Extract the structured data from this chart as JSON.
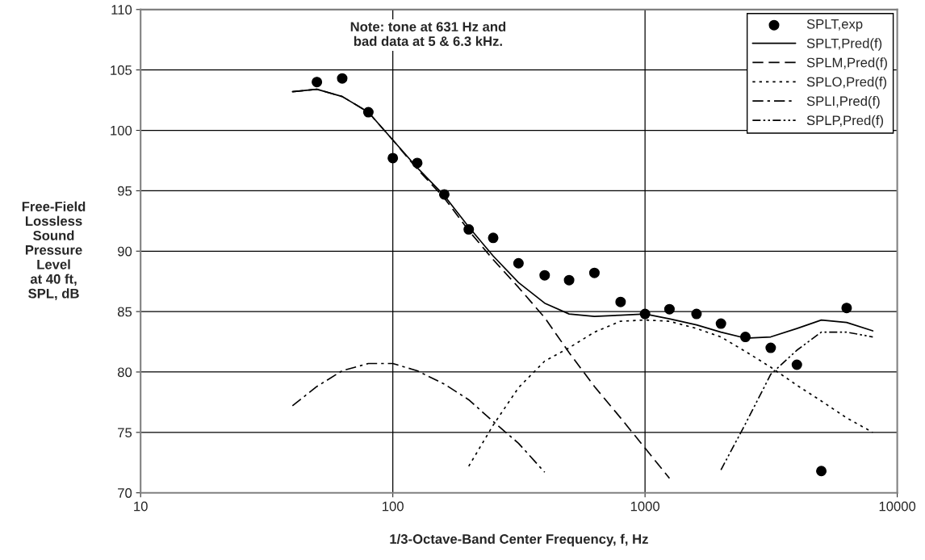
{
  "chart_data": {
    "type": "line",
    "xlabel": "1/3-Octave-Band Center Frequency, f, Hz",
    "ylabel": "Free-Field\nLossless\nSound\nPressure\nLevel\nat 40 ft,\nSPL, dB",
    "annotations": [
      "Note: tone at 631 Hz and\nbad data at 5 & 6.3 kHz."
    ],
    "x": [
      40,
      50,
      63,
      80,
      100,
      125,
      160,
      200,
      250,
      315,
      400,
      500,
      630,
      800,
      1000,
      1250,
      1600,
      2000,
      2500,
      3150,
      4000,
      5000,
      6300,
      8000
    ],
    "series": [
      {
        "name": "SPLT,exp",
        "type": "scatter",
        "marker": "circle",
        "color": "#000000",
        "values": [
          null,
          104.0,
          104.3,
          101.5,
          97.7,
          97.3,
          94.7,
          91.8,
          91.1,
          89.0,
          88.0,
          87.6,
          88.2,
          85.8,
          84.8,
          85.2,
          84.8,
          84.0,
          82.9,
          82.0,
          80.6,
          71.8,
          85.3,
          null
        ]
      },
      {
        "name": "SPLT,Pred(f)",
        "line_style": "solid",
        "color": "#000000",
        "values": [
          103.2,
          103.4,
          102.8,
          101.5,
          99.2,
          96.9,
          94.6,
          92.0,
          89.6,
          87.4,
          85.7,
          84.8,
          84.6,
          84.7,
          84.8,
          84.4,
          83.9,
          83.3,
          82.8,
          82.9,
          83.6,
          84.3,
          84.1,
          83.4
        ]
      },
      {
        "name": "SPLM,Pred(f)",
        "line_style": "dashed",
        "color": "#000000",
        "values": [
          103.2,
          103.4,
          102.8,
          101.5,
          99.2,
          96.8,
          94.4,
          91.7,
          89.3,
          87.0,
          84.5,
          81.6,
          78.8,
          76.2,
          73.7,
          71.2,
          null,
          null,
          null,
          null,
          null,
          null,
          null,
          null
        ]
      },
      {
        "name": "SPLO,Pred(f)",
        "line_style": "dotted",
        "color": "#000000",
        "values": [
          null,
          null,
          null,
          null,
          null,
          null,
          null,
          72.2,
          75.6,
          78.7,
          80.9,
          82.0,
          83.3,
          84.2,
          84.3,
          84.2,
          83.6,
          82.9,
          81.7,
          80.4,
          78.9,
          77.6,
          76.2,
          75.0
        ]
      },
      {
        "name": "SPLI,Pred(f)",
        "line_style": "dashdot",
        "color": "#000000",
        "values": [
          77.2,
          78.8,
          80.1,
          80.7,
          80.7,
          80.1,
          79.0,
          77.7,
          75.9,
          74.1,
          71.7,
          null,
          null,
          null,
          null,
          null,
          null,
          null,
          null,
          null,
          null,
          null,
          null,
          null
        ]
      },
      {
        "name": "SPLP,Pred(f)",
        "line_style": "dashdotdot",
        "color": "#000000",
        "values": [
          null,
          null,
          null,
          null,
          null,
          null,
          null,
          null,
          null,
          null,
          null,
          null,
          null,
          null,
          null,
          null,
          null,
          71.9,
          75.7,
          79.8,
          81.8,
          83.3,
          83.3,
          82.9
        ]
      }
    ],
    "log": "x",
    "xlim": [
      10,
      10000
    ],
    "xticks": [
      10,
      100,
      1000,
      10000
    ],
    "ylim": [
      70,
      110
    ],
    "yticks": [
      70,
      75,
      80,
      85,
      90,
      95,
      100,
      105,
      110
    ],
    "grid": true,
    "legend": "top right"
  }
}
